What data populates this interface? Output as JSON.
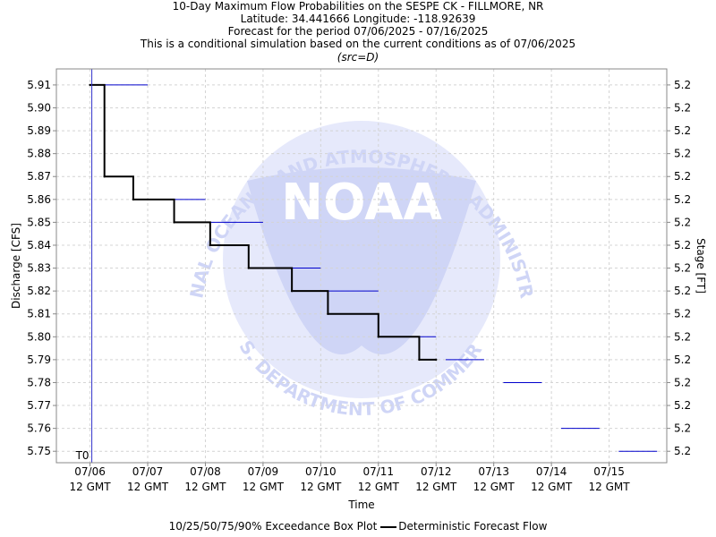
{
  "title_lines": [
    "10-Day Maximum Flow Probabilities on the SESPE CK - FILLMORE, NR",
    "Latitude: 34.441666 Longitude: -118.92639",
    "Forecast for the period 07/06/2025 - 07/16/2025",
    "This is a conditional simulation based on the current conditions as of 07/06/2025"
  ],
  "subtitle": "(src=D)",
  "watermark": {
    "arc_top": "NATIONAL OCEANIC AND ATMOSPHERIC ADMINISTRATION",
    "arc_bottom": "U.S. DEPARTMENT OF COMMERCE",
    "logo_text": "NOAA",
    "colors": {
      "light": "#e6e9fb",
      "dark": "#cfd5f6",
      "text": "#ffffff"
    }
  },
  "legend": {
    "box_label": "10/25/50/75/90% Exceedance Box Plot",
    "line_label": "Deterministic Forecast Flow"
  },
  "chart_data": {
    "type": "line",
    "xlabel": "Time",
    "ylabel": "Discharge [CFS]",
    "ylabel_right": "Stage [FT]",
    "ylim": [
      5.745,
      5.917
    ],
    "yticks": [
      5.75,
      5.76,
      5.77,
      5.78,
      5.79,
      5.8,
      5.81,
      5.82,
      5.83,
      5.84,
      5.85,
      5.86,
      5.87,
      5.88,
      5.89,
      5.9,
      5.91
    ],
    "right_ticks": [
      "5.2",
      "5.2",
      "5.2",
      "5.2",
      "5.2",
      "5.2",
      "5.2",
      "5.2",
      "5.2",
      "5.2",
      "5.2",
      "5.2",
      "5.2",
      "5.2",
      "5.2",
      "5.2",
      "5.2"
    ],
    "xlim": [
      "2025-07-05 22:00",
      "2025-07-16 12:00"
    ],
    "xticks": [
      {
        "date": "07/06",
        "time": "12 GMT"
      },
      {
        "date": "07/07",
        "time": "12 GMT"
      },
      {
        "date": "07/08",
        "time": "12 GMT"
      },
      {
        "date": "07/09",
        "time": "12 GMT"
      },
      {
        "date": "07/10",
        "time": "12 GMT"
      },
      {
        "date": "07/11",
        "time": "12 GMT"
      },
      {
        "date": "07/12",
        "time": "12 GMT"
      },
      {
        "date": "07/13",
        "time": "12 GMT"
      },
      {
        "date": "07/14",
        "time": "12 GMT"
      },
      {
        "date": "07/15",
        "time": "12 GMT"
      }
    ],
    "t0_label": "T0",
    "t0": "2025-07-06 12:00",
    "grid": true,
    "deterministic": [
      {
        "x": "2025-07-06 12:00",
        "y": 5.91
      },
      {
        "x": "2025-07-06 18:00",
        "y": 5.87
      },
      {
        "x": "2025-07-07 06:00",
        "y": 5.86
      },
      {
        "x": "2025-07-07 23:00",
        "y": 5.85
      },
      {
        "x": "2025-07-08 14:00",
        "y": 5.84
      },
      {
        "x": "2025-07-09 06:00",
        "y": 5.83
      },
      {
        "x": "2025-07-10 00:00",
        "y": 5.82
      },
      {
        "x": "2025-07-10 15:00",
        "y": 5.81
      },
      {
        "x": "2025-07-11 12:00",
        "y": 5.8
      },
      {
        "x": "2025-07-12 05:00",
        "y": 5.79
      },
      {
        "x": "2025-07-12 12:00",
        "y": 5.79
      }
    ],
    "exceedance": [
      {
        "x0": "2025-07-06 16:00",
        "x1": "2025-07-07 12:00",
        "y": 5.91
      },
      {
        "x0": "2025-07-07 12:00",
        "x1": "2025-07-08 12:00",
        "y": 5.86
      },
      {
        "x0": "2025-07-08 12:00",
        "x1": "2025-07-09 12:00",
        "y": 5.85
      },
      {
        "x0": "2025-07-09 12:00",
        "x1": "2025-07-10 12:00",
        "y": 5.83
      },
      {
        "x0": "2025-07-10 12:00",
        "x1": "2025-07-11 12:00",
        "y": 5.82
      },
      {
        "x0": "2025-07-11 12:00",
        "x1": "2025-07-12 12:00",
        "y": 5.8
      },
      {
        "x0": "2025-07-12 16:00",
        "x1": "2025-07-13 08:00",
        "y": 5.79
      },
      {
        "x0": "2025-07-13 16:00",
        "x1": "2025-07-14 08:00",
        "y": 5.78
      },
      {
        "x0": "2025-07-14 16:00",
        "x1": "2025-07-15 08:00",
        "y": 5.76
      },
      {
        "x0": "2025-07-15 16:00",
        "x1": "2025-07-16 08:00",
        "y": 5.75
      }
    ],
    "colors": {
      "deterministic": "#000000",
      "exceedance": "#0000cc",
      "t0_line": "#3333cc",
      "grid": "#d4d4d4",
      "axis": "#888888"
    }
  }
}
